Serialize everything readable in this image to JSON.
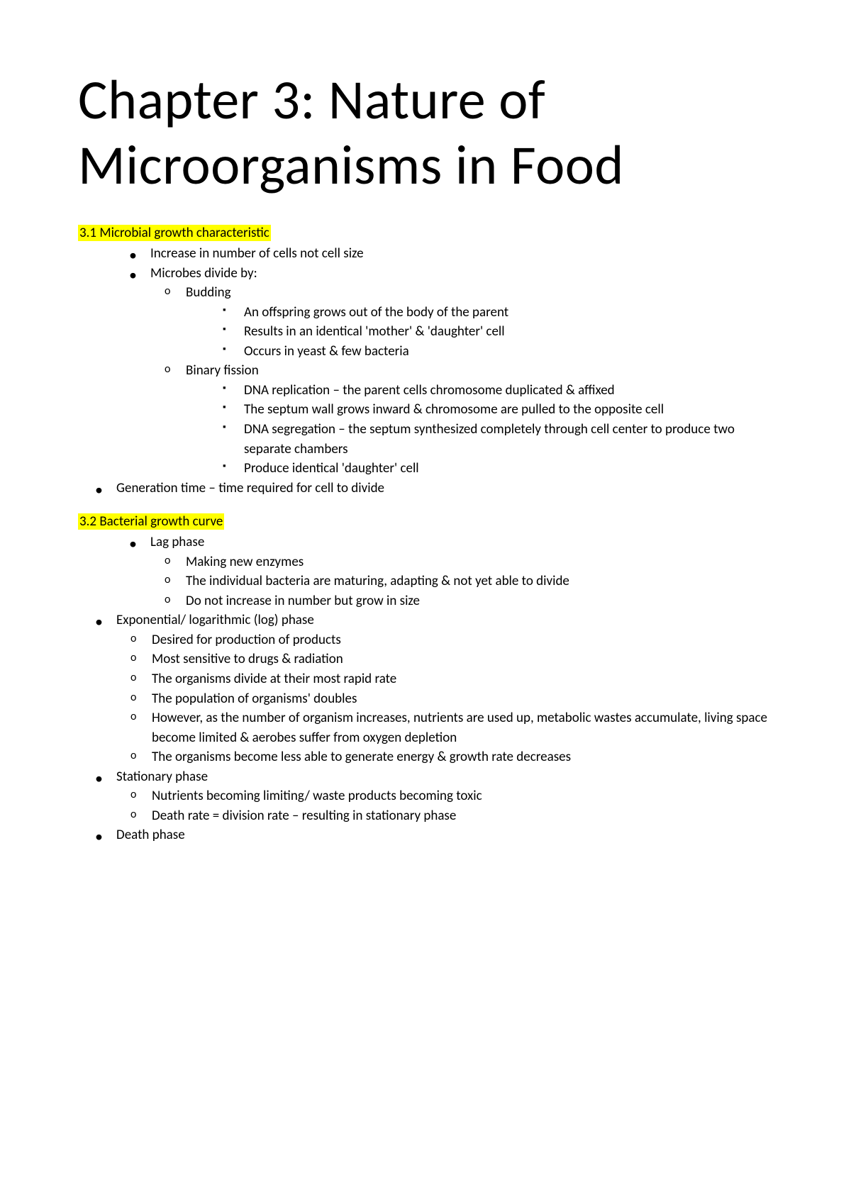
{
  "title": "Chapter 3: Nature of Microorganisms in Food",
  "section31": {
    "heading": "3.1  Microbial growth characteristic",
    "b1": "Increase in number of cells not cell size",
    "b2": "Microbes divide by:",
    "b2a": "Budding",
    "b2a1": "An offspring grows out of the body of the parent",
    "b2a2": "Results in an identical 'mother' & 'daughter' cell",
    "b2a3": "Occurs in yeast & few bacteria",
    "b2b": "Binary fission",
    "b2b1": "DNA replication – the parent cells chromosome duplicated & affixed",
    "b2b2": "The septum wall grows inward & chromosome are pulled to the opposite cell",
    "b2b3": "DNA segregation – the septum synthesized completely through cell center to produce two separate chambers",
    "b2b4": "Produce identical 'daughter' cell",
    "b3": "Generation time – time required for cell to divide"
  },
  "section32": {
    "heading": "3.2  Bacterial growth curve",
    "b1": "Lag phase",
    "b1a": "Making new enzymes",
    "b1b": "The individual bacteria are maturing, adapting & not yet able to divide",
    "b1c": "Do not increase in number but grow in size",
    "b2": "Exponential/ logarithmic (log) phase",
    "b2a": "Desired for production of products",
    "b2b": "Most sensitive to drugs & radiation",
    "b2c": "The organisms divide at their most rapid rate",
    "b2d": "The population of organisms' doubles",
    "b2e": "However, as the number of organism increases, nutrients are used up, metabolic wastes accumulate, living space become limited & aerobes suffer from oxygen depletion",
    "b2f": "The organisms become less able to generate energy & growth rate decreases",
    "b3": "Stationary phase",
    "b3a": "Nutrients becoming limiting/ waste products becoming toxic",
    "b3b": "Death rate = division rate – resulting in stationary phase",
    "b4": "Death phase"
  },
  "colors": {
    "highlight": "#ffff00",
    "text": "#000000",
    "background": "#ffffff"
  },
  "typography": {
    "title_fontsize": 78,
    "body_fontsize": 19,
    "font_family": "Calibri"
  }
}
